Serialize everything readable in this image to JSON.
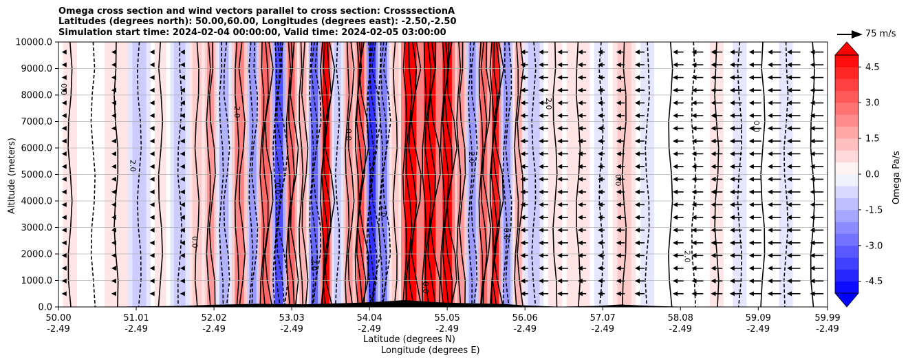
{
  "chart_data": {
    "type": "heatmap",
    "title_lines": [
      "Omega cross section and wind vectors parallel to cross section: CrosssectionA",
      "Latitudes (degrees north): 50.00,60.00, Longitudes (degrees east): -2.50,-2.50",
      "Simulation start time: 2024-02-04 00:00:00, Valid time: 2024-02-05 03:00:00"
    ],
    "xlabel_line1": "Latitude (degrees N)",
    "xlabel_line2": "Longitude (degrees E)",
    "ylabel": "Altitude (meters)",
    "x_ticks": [
      {
        "lat": "50.00",
        "lon": "-2.49"
      },
      {
        "lat": "51.01",
        "lon": "-2.49"
      },
      {
        "lat": "52.02",
        "lon": "-2.49"
      },
      {
        "lat": "53.03",
        "lon": "-2.49"
      },
      {
        "lat": "54.04",
        "lon": "-2.49"
      },
      {
        "lat": "55.05",
        "lon": "-2.49"
      },
      {
        "lat": "56.06",
        "lon": "-2.49"
      },
      {
        "lat": "57.07",
        "lon": "-2.49"
      },
      {
        "lat": "58.08",
        "lon": "-2.49"
      },
      {
        "lat": "59.09",
        "lon": "-2.49"
      },
      {
        "lat": "59.99",
        "lon": "-2.49"
      }
    ],
    "xlim": [
      50.0,
      59.99
    ],
    "y_ticks": [
      "0.0",
      "1000.0",
      "2000.0",
      "3000.0",
      "4000.0",
      "5000.0",
      "6000.0",
      "7000.0",
      "8000.0",
      "9000.0",
      "10000.0"
    ],
    "ylim": [
      0,
      10000
    ],
    "grid": "horizontal",
    "colorbar": {
      "label": "Omega Pa/s",
      "ticks": [
        "4.5",
        "3.0",
        "1.5",
        "0.0",
        "-1.5",
        "-3.0",
        "-4.5"
      ],
      "range": [
        -5.0,
        5.0
      ],
      "colormap": "bwr",
      "extend": "both"
    },
    "vector_key": "75 m/s",
    "omega_bands": [
      {
        "lat": 50.0,
        "omega": 0.3
      },
      {
        "lat": 50.3,
        "omega": -0.2
      },
      {
        "lat": 50.6,
        "omega": 0.6
      },
      {
        "lat": 50.9,
        "omega": -0.8
      },
      {
        "lat": 51.2,
        "omega": 0.4
      },
      {
        "lat": 51.45,
        "omega": -1.2
      },
      {
        "lat": 51.7,
        "omega": 0.8
      },
      {
        "lat": 51.9,
        "omega": 1.8
      },
      {
        "lat": 52.05,
        "omega": -1.6
      },
      {
        "lat": 52.25,
        "omega": 2.4
      },
      {
        "lat": 52.45,
        "omega": -2.2
      },
      {
        "lat": 52.6,
        "omega": 3.2
      },
      {
        "lat": 52.78,
        "omega": -3.6
      },
      {
        "lat": 52.95,
        "omega": 2.8
      },
      {
        "lat": 53.1,
        "omega": 1.5
      },
      {
        "lat": 53.25,
        "omega": -3.0
      },
      {
        "lat": 53.4,
        "omega": 4.8
      },
      {
        "lat": 53.55,
        "omega": -1.0
      },
      {
        "lat": 53.7,
        "omega": 2.0
      },
      {
        "lat": 53.85,
        "omega": 3.5
      },
      {
        "lat": 54.0,
        "omega": -4.2
      },
      {
        "lat": 54.15,
        "omega": -2.5
      },
      {
        "lat": 54.3,
        "omega": 1.2
      },
      {
        "lat": 54.45,
        "omega": 5.0
      },
      {
        "lat": 54.7,
        "omega": 5.0
      },
      {
        "lat": 54.95,
        "omega": 5.0
      },
      {
        "lat": 55.15,
        "omega": 2.2
      },
      {
        "lat": 55.3,
        "omega": -1.8
      },
      {
        "lat": 55.45,
        "omega": 3.0
      },
      {
        "lat": 55.6,
        "omega": 4.6
      },
      {
        "lat": 55.75,
        "omega": -2.0
      },
      {
        "lat": 55.9,
        "omega": 1.5
      },
      {
        "lat": 56.05,
        "omega": -0.8
      },
      {
        "lat": 56.3,
        "omega": 0.3
      },
      {
        "lat": 56.6,
        "omega": 0.6
      },
      {
        "lat": 56.9,
        "omega": -0.4
      },
      {
        "lat": 57.2,
        "omega": 0.9
      },
      {
        "lat": 57.5,
        "omega": -0.3
      },
      {
        "lat": 57.8,
        "omega": 0.2
      },
      {
        "lat": 58.1,
        "omega": -0.2
      },
      {
        "lat": 58.4,
        "omega": 0.3
      },
      {
        "lat": 58.7,
        "omega": -0.4
      },
      {
        "lat": 59.0,
        "omega": 0.2
      },
      {
        "lat": 59.3,
        "omega": -0.3
      },
      {
        "lat": 59.6,
        "omega": 0.1
      },
      {
        "lat": 59.99,
        "omega": 0.1
      }
    ],
    "contour_labels": [
      "0.0",
      "-1.0",
      "1.0",
      "2.0",
      "5.0",
      "-2.0"
    ],
    "wind_arrows": [
      {
        "lat": 50.05,
        "speed": 3
      },
      {
        "lat": 50.7,
        "speed": 5
      },
      {
        "lat": 51.2,
        "speed": 6
      },
      {
        "lat": 51.6,
        "speed": 8
      },
      {
        "lat": 56.05,
        "speed": 20
      },
      {
        "lat": 56.3,
        "speed": 25
      },
      {
        "lat": 56.55,
        "speed": 28
      },
      {
        "lat": 56.8,
        "speed": 22
      },
      {
        "lat": 57.05,
        "speed": 18
      },
      {
        "lat": 57.3,
        "speed": 22
      },
      {
        "lat": 57.55,
        "speed": 25
      },
      {
        "lat": 58.05,
        "speed": 28
      },
      {
        "lat": 58.3,
        "speed": 30
      },
      {
        "lat": 58.55,
        "speed": 30
      },
      {
        "lat": 58.8,
        "speed": 32
      },
      {
        "lat": 59.05,
        "speed": 32
      },
      {
        "lat": 59.3,
        "speed": 35
      },
      {
        "lat": 59.55,
        "speed": 35
      },
      {
        "lat": 59.85,
        "speed": 35
      }
    ],
    "vector_key_speed": 75
  }
}
